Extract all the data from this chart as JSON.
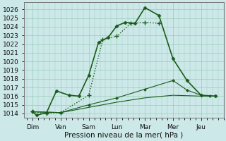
{
  "background_color": "#cce8e8",
  "grid_color": "#99ccbb",
  "line_color": "#1a5c1a",
  "x_labels": [
    "Dim",
    "Ven",
    "Sam",
    "Lun",
    "Mar",
    "Mer",
    "Jeu"
  ],
  "ylim": [
    1013.5,
    1026.8
  ],
  "yticks": [
    1014,
    1015,
    1016,
    1017,
    1018,
    1019,
    1020,
    1021,
    1022,
    1023,
    1024,
    1025,
    1026
  ],
  "xlabel": "Pression niveau de la mer( hPa )",
  "line1_x": [
    0,
    0.15,
    0.5,
    0.85,
    1.3,
    1.65,
    2.0,
    2.35,
    2.7,
    3.0,
    3.3,
    3.65,
    4.0,
    4.5,
    5.0,
    5.5,
    6.0,
    6.5
  ],
  "line1_y": [
    1014.2,
    1013.8,
    1014.1,
    1016.6,
    1016.1,
    1016.0,
    1018.4,
    1022.2,
    1022.8,
    1024.1,
    1024.5,
    1024.4,
    1026.2,
    1025.3,
    1020.3,
    1017.8,
    1016.1,
    1016.0
  ],
  "line2_x": [
    0,
    0.5,
    1.0,
    2.0,
    2.5,
    3.0,
    3.5,
    4.0,
    4.5
  ],
  "line2_y": [
    1014.2,
    1014.0,
    1014.1,
    1016.1,
    1022.5,
    1022.9,
    1024.4,
    1024.5,
    1024.4
  ],
  "line3_x": [
    0,
    1.0,
    2.0,
    3.0,
    4.0,
    5.0,
    6.0,
    6.5
  ],
  "line3_y": [
    1014.2,
    1014.1,
    1014.7,
    1015.3,
    1015.8,
    1016.1,
    1016.0,
    1016.0
  ],
  "line4_x": [
    0,
    1.0,
    2.0,
    3.0,
    4.0,
    5.0,
    5.5,
    6.0,
    6.3,
    6.5
  ],
  "line4_y": [
    1014.2,
    1014.1,
    1015.0,
    1015.8,
    1016.8,
    1017.8,
    1016.7,
    1016.1,
    1016.0,
    1016.0
  ],
  "xlim": [
    -0.3,
    6.8
  ],
  "xlabel_fontsize": 7.5,
  "tick_fontsize": 6.5
}
